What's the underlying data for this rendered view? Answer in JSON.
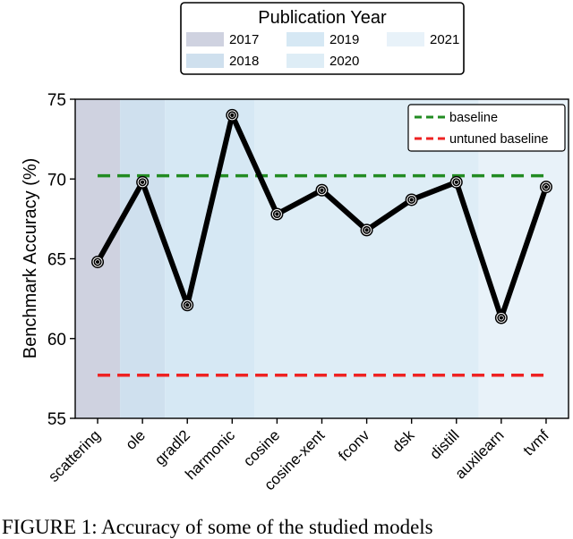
{
  "caption": "FIGURE 1: Accuracy of some of the studied models",
  "chart_data": {
    "type": "line",
    "ylabel": "Benchmark Accuracy (%)",
    "xlabel": "",
    "ylim": [
      55,
      75
    ],
    "yticks": [
      55,
      60,
      65,
      70,
      75
    ],
    "categories": [
      "scattering",
      "ole",
      "gradl2",
      "harmonic",
      "cosine",
      "cosine-xent",
      "fconv",
      "dsk",
      "distill",
      "auxilearn",
      "tvmf"
    ],
    "series": [
      {
        "name": "",
        "color": "#000000",
        "values": [
          64.8,
          69.8,
          62.1,
          74.0,
          67.8,
          69.3,
          66.8,
          68.7,
          69.8,
          61.3,
          69.5
        ]
      }
    ],
    "reference_lines": [
      {
        "name": "baseline",
        "value": 70.2,
        "color": "#228b22",
        "style": "dashed"
      },
      {
        "name": "untuned baseline",
        "value": 57.7,
        "color": "#ee2222",
        "style": "dashed"
      }
    ],
    "year_legend": {
      "title": "Publication Year",
      "entries": [
        {
          "label": "2017",
          "color": "#cfd2e0"
        },
        {
          "label": "2018",
          "color": "#cfe0ee"
        },
        {
          "label": "2019",
          "color": "#d6e8f4"
        },
        {
          "label": "2020",
          "color": "#deedf6"
        },
        {
          "label": "2021",
          "color": "#e8f2f9"
        }
      ]
    },
    "year_bands": [
      {
        "year": "2017",
        "from": 0,
        "to": 0
      },
      {
        "year": "2018",
        "from": 1,
        "to": 1
      },
      {
        "year": "2019",
        "from": 2,
        "to": 3
      },
      {
        "year": "2020",
        "from": 4,
        "to": 8
      },
      {
        "year": "2021",
        "from": 9,
        "to": 10
      }
    ],
    "legend_position": "top-right",
    "grid": false
  }
}
